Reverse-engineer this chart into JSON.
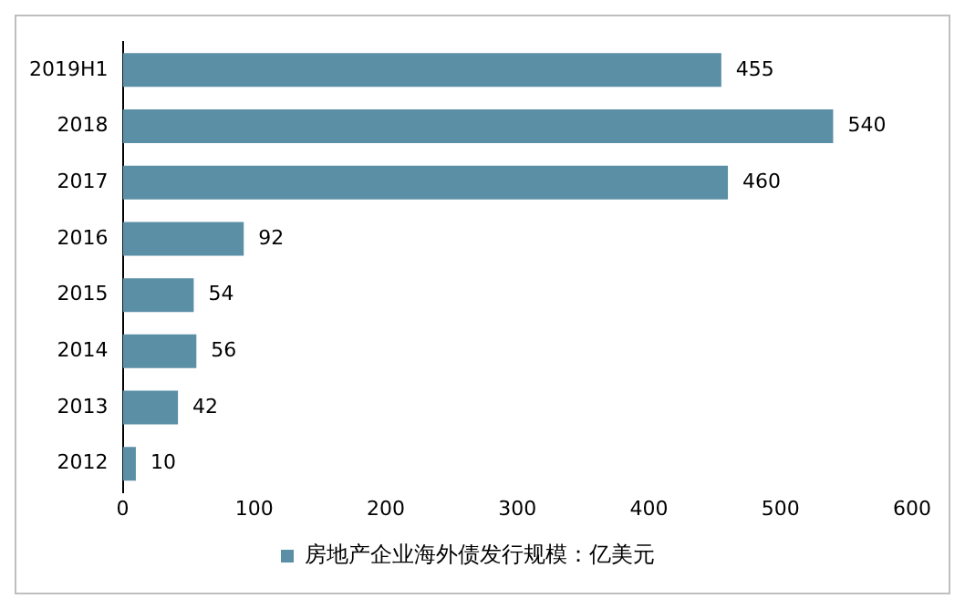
{
  "chart_data": {
    "type": "bar",
    "orientation": "horizontal",
    "categories": [
      "2019H1",
      "2018",
      "2017",
      "2016",
      "2015",
      "2014",
      "2013",
      "2012"
    ],
    "series": [
      {
        "name": "房地产企业海外债发行规模：亿美元",
        "color": "#5b8fa6",
        "values": [
          455,
          540,
          460,
          92,
          54,
          56,
          42,
          10
        ]
      }
    ],
    "xlim": [
      0,
      600
    ],
    "xticks": [
      0,
      100,
      200,
      300,
      400,
      500,
      600
    ],
    "data_labels": true,
    "legend": "bottom",
    "grid": false
  }
}
